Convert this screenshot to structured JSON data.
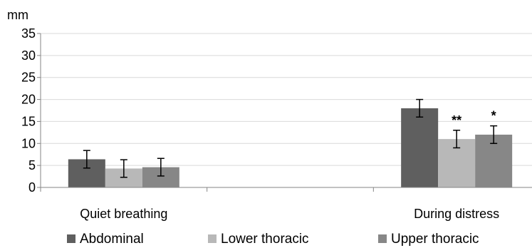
{
  "chart_data": {
    "type": "bar",
    "title": "",
    "xlabel": "",
    "ylabel": "mm",
    "ylim": [
      0,
      35
    ],
    "yticks": [
      0,
      5,
      10,
      15,
      20,
      25,
      30,
      35
    ],
    "grid": true,
    "legend_position": "bottom",
    "categories": [
      "Quiet breathing",
      "",
      "During distress"
    ],
    "series": [
      {
        "name": "Abdominal",
        "color": "#5f5f5f",
        "values": [
          6.4,
          null,
          18.0
        ],
        "errors": [
          2.0,
          null,
          2.0
        ]
      },
      {
        "name": "Lower thoracic",
        "color": "#b8b8b8",
        "values": [
          4.3,
          null,
          11.0
        ],
        "errors": [
          2.0,
          null,
          2.0
        ]
      },
      {
        "name": "Upper thoracic",
        "color": "#878787",
        "values": [
          4.6,
          null,
          12.0
        ],
        "errors": [
          2.0,
          null,
          2.0
        ]
      }
    ],
    "annotations": [
      {
        "series": 1,
        "category": 2,
        "text": "**"
      },
      {
        "series": 2,
        "category": 2,
        "text": "*"
      }
    ]
  }
}
